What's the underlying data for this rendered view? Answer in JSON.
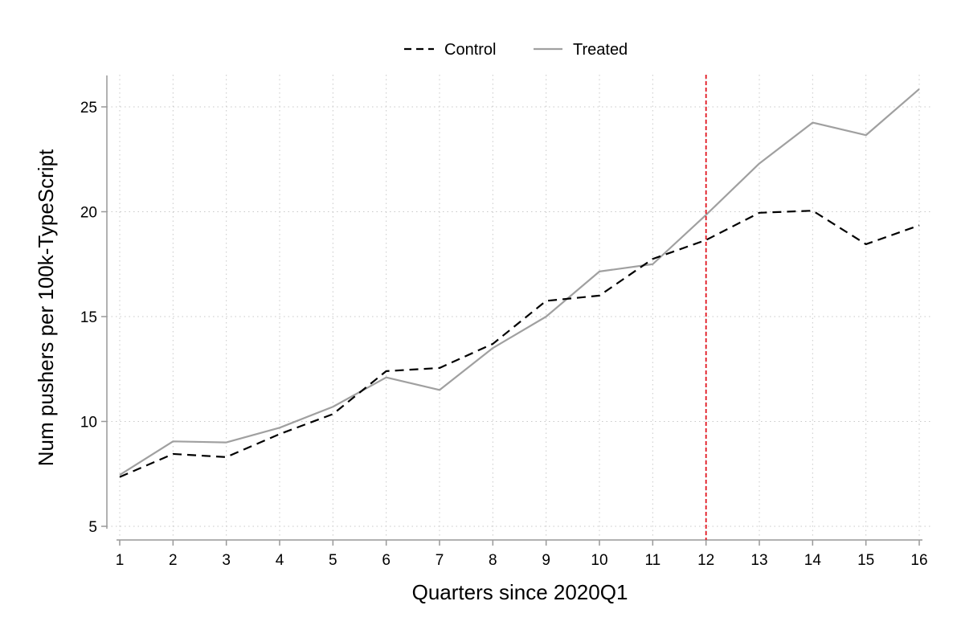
{
  "chart_data": {
    "type": "line",
    "xlabel": "Quarters since 2020Q1",
    "ylabel": "Num pushers per 100k-TypeScript",
    "x": [
      1,
      2,
      3,
      4,
      5,
      6,
      7,
      8,
      9,
      10,
      11,
      12,
      13,
      14,
      15,
      16
    ],
    "x_ticks": [
      "1",
      "2",
      "3",
      "4",
      "5",
      "6",
      "7",
      "8",
      "9",
      "10",
      "11",
      "12",
      "13",
      "14",
      "15",
      "16"
    ],
    "y_ticks": [
      "5",
      "10",
      "15",
      "20",
      "25"
    ],
    "xlim": [
      1,
      16
    ],
    "ylim": [
      5,
      26.5
    ],
    "grid": true,
    "legend_position": "top",
    "series": [
      {
        "name": "Control",
        "style": "dashed",
        "color": "#000000",
        "values": [
          7.35,
          8.45,
          8.3,
          9.4,
          10.35,
          12.4,
          12.55,
          13.7,
          15.75,
          16.0,
          17.75,
          18.65,
          19.95,
          20.05,
          18.45,
          19.35
        ]
      },
      {
        "name": "Treated",
        "style": "solid",
        "color": "#a0a0a0",
        "values": [
          7.45,
          9.05,
          9.0,
          9.7,
          10.7,
          12.1,
          11.5,
          13.5,
          15.0,
          17.15,
          17.5,
          19.85,
          22.3,
          24.25,
          23.65,
          25.85
        ]
      }
    ],
    "reference_line": {
      "x": 12,
      "color": "#e0141e",
      "style": "dashed"
    }
  }
}
